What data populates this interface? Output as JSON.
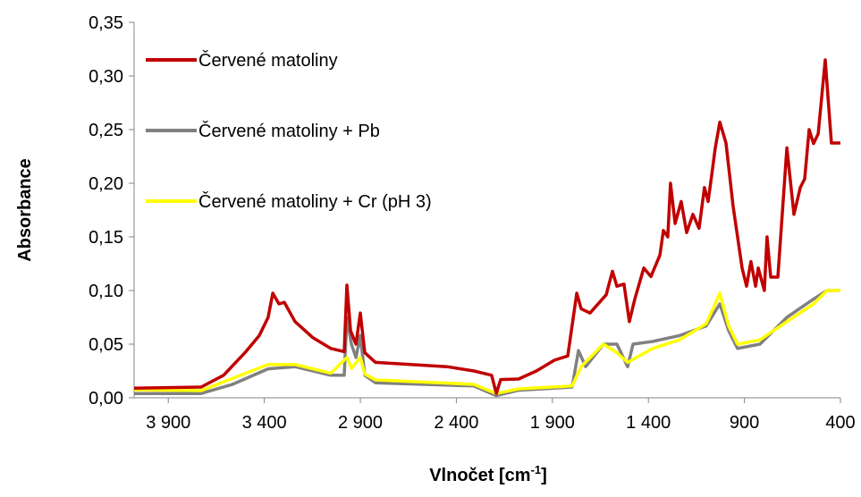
{
  "chart_data": {
    "type": "line",
    "y_label": "Absorbance",
    "x_label": {
      "text": "Vlnočet [cm",
      "sup": "-1",
      "end": "]"
    },
    "xlim": [
      4078,
      400
    ],
    "ylim": [
      0,
      0.35
    ],
    "xticks": [
      {
        "value": 3900,
        "label": "3 900"
      },
      {
        "value": 3400,
        "label": "3 400"
      },
      {
        "value": 2900,
        "label": "2 900"
      },
      {
        "value": 2400,
        "label": "2 400"
      },
      {
        "value": 1900,
        "label": "1 900"
      },
      {
        "value": 1400,
        "label": "1 400"
      },
      900,
      400
    ],
    "yticks": [
      {
        "value": 0,
        "label": "0,00"
      },
      {
        "value": 0.05,
        "label": "0,05"
      },
      {
        "value": 0.1,
        "label": "0,10"
      },
      {
        "value": 0.15,
        "label": "0,15"
      },
      {
        "value": 0.2,
        "label": "0,20"
      },
      {
        "value": 0.25,
        "label": "0,25"
      },
      {
        "value": 0.3,
        "label": "0,30"
      },
      {
        "value": 0.35,
        "label": "0,35"
      }
    ],
    "series": [
      {
        "name": "Červené matoliny",
        "color": "#c00000",
        "x": [
          4078,
          3729,
          3612,
          3496,
          3426,
          3380,
          3356,
          3324,
          3296,
          3240,
          3147,
          3054,
          2984,
          2970,
          2951,
          2923,
          2900,
          2877,
          2821,
          2449,
          2309,
          2216,
          2192,
          2169,
          2076,
          1983,
          1890,
          1820,
          1773,
          1750,
          1704,
          1620,
          1587,
          1564,
          1527,
          1499,
          1471,
          1424,
          1387,
          1340,
          1322,
          1299,
          1285,
          1261,
          1229,
          1201,
          1168,
          1136,
          1108,
          1089,
          1070,
          1052,
          1028,
          996,
          959,
          912,
          889,
          866,
          842,
          828,
          796,
          782,
          763,
          726,
          679,
          642,
          609,
          586,
          563,
          540,
          516,
          479,
          447,
          400
        ],
        "values": [
          0.009,
          0.01,
          0.021,
          0.043,
          0.058,
          0.075,
          0.0975,
          0.0875,
          0.089,
          0.071,
          0.056,
          0.046,
          0.043,
          0.105,
          0.0625,
          0.05,
          0.079,
          0.042,
          0.033,
          0.029,
          0.025,
          0.021,
          0.004,
          0.017,
          0.0175,
          0.025,
          0.035,
          0.039,
          0.0975,
          0.083,
          0.079,
          0.096,
          0.118,
          0.104,
          0.106,
          0.071,
          0.092,
          0.121,
          0.113,
          0.133,
          0.156,
          0.15,
          0.2,
          0.1625,
          0.183,
          0.154,
          0.171,
          0.158,
          0.196,
          0.183,
          0.208,
          0.233,
          0.257,
          0.2375,
          0.179,
          0.121,
          0.104,
          0.127,
          0.104,
          0.121,
          0.1,
          0.15,
          0.1125,
          0.1125,
          0.233,
          0.171,
          0.196,
          0.204,
          0.25,
          0.237,
          0.246,
          0.315,
          0.2375,
          0.2375
        ]
      },
      {
        "name": "Červené matoliny + Pb",
        "color": "#808080",
        "x": [
          4078,
          3729,
          3566,
          3380,
          3240,
          3054,
          2984,
          2970,
          2946,
          2923,
          2900,
          2877,
          2821,
          2309,
          2192,
          2076,
          1797,
          1764,
          1727,
          1634,
          1564,
          1508,
          1480,
          1378,
          1238,
          1099,
          1028,
          982,
          936,
          819,
          679,
          540,
          470,
          400
        ],
        "values": [
          0.004,
          0.004,
          0.0125,
          0.027,
          0.029,
          0.021,
          0.021,
          0.075,
          0.05,
          0.0375,
          0.058,
          0.021,
          0.014,
          0.011,
          0.002,
          0.007,
          0.01,
          0.044,
          0.029,
          0.05,
          0.05,
          0.029,
          0.05,
          0.0525,
          0.058,
          0.067,
          0.0875,
          0.0625,
          0.046,
          0.05,
          0.075,
          0.092,
          0.1,
          0.1
        ]
      },
      {
        "name": "Červené matoliny + Cr (pH 3)",
        "color": "#ffff00",
        "x": [
          4078,
          3729,
          3380,
          3240,
          3054,
          2970,
          2946,
          2900,
          2877,
          2821,
          2309,
          2192,
          2076,
          1797,
          1750,
          1634,
          1564,
          1508,
          1378,
          1238,
          1099,
          1028,
          982,
          936,
          819,
          679,
          540,
          470,
          400
        ],
        "values": [
          0.0075,
          0.0067,
          0.031,
          0.031,
          0.023,
          0.0375,
          0.0275,
          0.0375,
          0.022,
          0.0167,
          0.0125,
          0.004,
          0.0083,
          0.011,
          0.029,
          0.05,
          0.042,
          0.033,
          0.046,
          0.054,
          0.069,
          0.0975,
          0.067,
          0.05,
          0.054,
          0.071,
          0.0875,
          0.1,
          0.1
        ]
      }
    ]
  }
}
